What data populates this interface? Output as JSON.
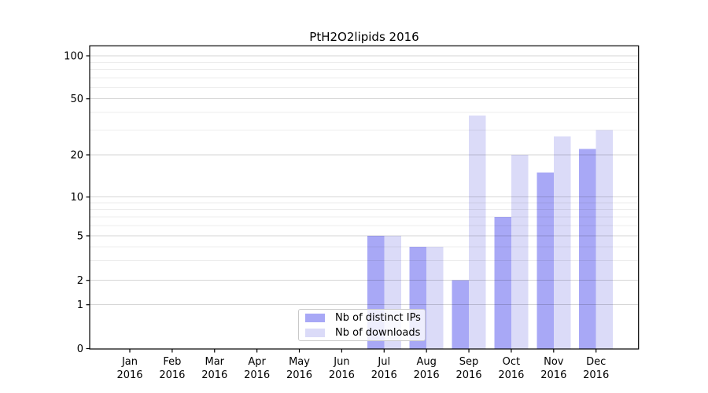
{
  "chart_data": {
    "type": "bar",
    "title": "PtH2O2lipids 2016",
    "categories": [
      "Jan 2016",
      "Feb 2016",
      "Mar 2016",
      "Apr 2016",
      "May 2016",
      "Jun 2016",
      "Jul 2016",
      "Aug 2016",
      "Sep 2016",
      "Oct 2016",
      "Nov 2016",
      "Dec 2016"
    ],
    "x_tick_months": [
      "Jan",
      "Feb",
      "Mar",
      "Apr",
      "May",
      "Jun",
      "Jul",
      "Aug",
      "Sep",
      "Oct",
      "Nov",
      "Dec"
    ],
    "x_tick_year": "2016",
    "series": [
      {
        "name": "Nb of distinct IPs",
        "color": "#a8a8f6",
        "values": [
          0,
          0,
          0,
          0,
          0,
          0,
          5,
          4,
          2,
          7,
          15,
          22
        ]
      },
      {
        "name": "Nb of downloads",
        "color": "#dbdbf8",
        "values": [
          0,
          0,
          0,
          0,
          0,
          0,
          5,
          4,
          38,
          20,
          27,
          30
        ]
      }
    ],
    "y_axis": {
      "major_ticks": [
        0,
        1,
        2,
        5,
        10,
        20,
        50,
        100
      ],
      "minor_gridlines": [
        3,
        4,
        6,
        7,
        8,
        9,
        30,
        40,
        60,
        70,
        80,
        90
      ],
      "scale": "log-like with zero baseline",
      "ylim": [
        0,
        100
      ]
    },
    "legend": {
      "entries": [
        "Nb of distinct IPs",
        "Nb of downloads"
      ],
      "position": "lower center"
    },
    "grid": true,
    "axis_color": "#000000"
  }
}
